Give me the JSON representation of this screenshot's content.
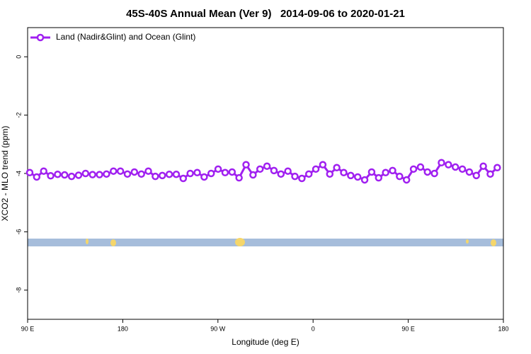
{
  "chart_data": {
    "type": "line",
    "title": "45S-40S Annual Mean (Ver 9)   2014-09-06 to 2020-01-21",
    "xlabel": "Longitude (deg E)",
    "ylabel": "XCO2 - MLO trend (ppm)",
    "x": [
      92,
      98.6,
      105.2,
      111.8,
      118.4,
      125,
      131.6,
      138.2,
      144.8,
      151.4,
      158,
      164.6,
      171.2,
      177.8,
      184.4,
      191,
      197.6,
      204.2,
      210.8,
      217.4,
      224,
      230.6,
      237.2,
      243.8,
      250.4,
      257,
      263.6,
      270.2,
      276.8,
      283.4,
      290,
      296.6,
      303.2,
      309.8,
      316.4,
      323,
      329.6,
      336.2,
      342.8,
      349.4,
      356,
      362.6,
      369.2,
      375.8,
      382.4,
      389,
      395.6,
      402.2,
      408.8,
      415.4,
      422,
      428.6,
      435.2,
      441.8,
      448.4,
      455,
      461.6,
      468.2,
      474.8,
      481.4,
      488,
      494.6,
      501.2,
      507.8,
      514.4,
      521,
      527.6,
      534.2
    ],
    "series": [
      {
        "name": "Land (Nadir&Glint) and Ocean (Glint)",
        "color": "#a020f0",
        "values": [
          -3.97,
          -4.12,
          -3.92,
          -4.08,
          -4.03,
          -4.05,
          -4.1,
          -4.06,
          -4.0,
          -4.04,
          -4.04,
          -4.02,
          -3.92,
          -3.92,
          -4.02,
          -3.95,
          -4.02,
          -3.92,
          -4.1,
          -4.07,
          -4.03,
          -4.03,
          -4.17,
          -4.0,
          -3.97,
          -4.12,
          -4.0,
          -3.85,
          -3.97,
          -3.95,
          -4.15,
          -3.7,
          -4.05,
          -3.85,
          -3.75,
          -3.9,
          -4.02,
          -3.92,
          -4.1,
          -4.17,
          -4.02,
          -3.85,
          -3.7,
          -4.02,
          -3.8,
          -3.97,
          -4.07,
          -4.12,
          -4.22,
          -3.95,
          -4.15,
          -3.97,
          -3.9,
          -4.1,
          -4.22,
          -3.85,
          -3.78,
          -3.95,
          -4.0,
          -3.63,
          -3.7,
          -3.78,
          -3.85,
          -3.95,
          -4.07,
          -3.75,
          -4.02,
          -3.8
        ]
      }
    ],
    "xlim": [
      90,
      540
    ],
    "xticks": [
      {
        "value": 90,
        "label": "90 E"
      },
      {
        "value": 180,
        "label": "180"
      },
      {
        "value": 270,
        "label": "90 W"
      },
      {
        "value": 360,
        "label": "0"
      },
      {
        "value": 450,
        "label": "90 E"
      },
      {
        "value": 540,
        "label": "180"
      }
    ],
    "ylim": [
      -9,
      1
    ],
    "yticks": [
      -8,
      -6,
      -4,
      -2,
      0
    ],
    "legend": "topleft"
  }
}
